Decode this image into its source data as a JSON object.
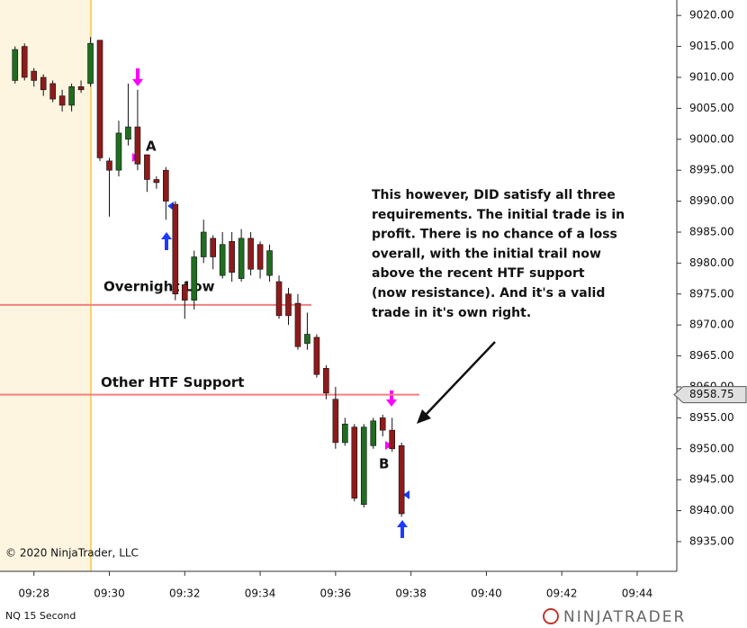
{
  "chart_data": {
    "type": "candlestick",
    "instrument": "NQ 15 Second",
    "copyright": "© 2020 NinjaTrader, LLC",
    "logo": "NINJATRADER",
    "up_color": "#1f6e1f",
    "down_color": "#8e1b1b",
    "wick_color": "#111111",
    "x": [
      567.5,
      567.75,
      568,
      568.25,
      568.5,
      568.75,
      569,
      569.25,
      569.5,
      569.75,
      570,
      570.25,
      570.5,
      570.75,
      571,
      571.25,
      571.5,
      571.75,
      572,
      572.25,
      572.5,
      572.75,
      573,
      573.25,
      573.5,
      573.75,
      574,
      574.25,
      574.5,
      574.75,
      575,
      575.25,
      575.5,
      575.75,
      576,
      576.25,
      576.5,
      576.75,
      577,
      577.25,
      577.5,
      577.75
    ],
    "open": [
      9009.5,
      9015,
      9011,
      9010,
      9009,
      9007,
      9005.5,
      9008.5,
      9009,
      9016,
      8996.5,
      8995,
      9000,
      9002,
      8997.5,
      8993.5,
      8995,
      8989.5,
      8976.5,
      8974,
      8981,
      8984,
      8978,
      8983.5,
      8977.5,
      8984,
      8983,
      8978,
      8977,
      8975,
      8973.5,
      8967,
      8968,
      8963,
      8958,
      8951,
      8953.5,
      8941,
      8950.5,
      8955,
      8953,
      8950.5
    ],
    "high": [
      9015,
      9015.5,
      9011.5,
      9010.5,
      9009.5,
      9008,
      9009,
      9009.5,
      9016.5,
      9016,
      8997,
      9003,
      9009,
      9008,
      8997.5,
      8994,
      8995.5,
      8990,
      8977,
      8982,
      8987,
      8984.5,
      8985,
      8985,
      8985.5,
      8985,
      8983.5,
      8983,
      8978,
      8976,
      8975,
      8972,
      8968.5,
      8963.5,
      8960,
      8955,
      8954,
      8954,
      8955,
      8955.5,
      8955,
      8951
    ],
    "low": [
      9009,
      9009.5,
      9008.5,
      9007,
      9006,
      9004.5,
      9004.5,
      9007.5,
      9008.5,
      8996.5,
      8987.5,
      8994,
      8999,
      8995,
      8991.5,
      8992,
      8987,
      8974,
      8971,
      8972.5,
      8980,
      8979,
      8977.5,
      8977,
      8977,
      8978,
      8977.5,
      8977,
      8971,
      8970,
      8966,
      8966,
      8961.5,
      8958,
      8950,
      8950.5,
      8941.5,
      8940.5,
      8950,
      8952,
      8949.5,
      8939
    ],
    "close": [
      9014.5,
      9010,
      9009.5,
      9008,
      9006.5,
      9005.5,
      9008.5,
      9008,
      9015.5,
      8997,
      8995,
      9001,
      9002,
      8996,
      8993.5,
      8993,
      8990,
      8975,
      8974,
      8981,
      8985,
      8981,
      8983,
      8978.5,
      8984,
      8979,
      8979,
      8982,
      8971.5,
      8971.5,
      8966.5,
      8968.5,
      8962,
      8959,
      8951,
      8954,
      8942,
      8953.5,
      8954.5,
      8953,
      8950,
      8939.5
    ],
    "xlim": [
      567.1,
      585.05
    ],
    "ylim": [
      8930.2,
      9022.5
    ],
    "xticks": [
      {
        "value": 568,
        "label": "09:28"
      },
      {
        "value": 570,
        "label": "09:30"
      },
      {
        "value": 572,
        "label": "09:32"
      },
      {
        "value": 574,
        "label": "09:34"
      },
      {
        "value": 576,
        "label": "09:36"
      },
      {
        "value": 578,
        "label": "09:38"
      },
      {
        "value": 580,
        "label": "09:40"
      },
      {
        "value": 582,
        "label": "09:42"
      },
      {
        "value": 584,
        "label": "09:44"
      }
    ],
    "yticks": [
      {
        "value": 8935,
        "label": "8935.00"
      },
      {
        "value": 8940,
        "label": "8940.00"
      },
      {
        "value": 8945,
        "label": "8945.00"
      },
      {
        "value": 8950,
        "label": "8950.00"
      },
      {
        "value": 8955,
        "label": "8955.00"
      },
      {
        "value": 8960,
        "label": "8960.00"
      },
      {
        "value": 8965,
        "label": "8965.00"
      },
      {
        "value": 8970,
        "label": "8970.00"
      },
      {
        "value": 8975,
        "label": "8975.00"
      },
      {
        "value": 8980,
        "label": "8980.00"
      },
      {
        "value": 8985,
        "label": "8985.00"
      },
      {
        "value": 8990,
        "label": "8990.00"
      },
      {
        "value": 8995,
        "label": "8995.00"
      },
      {
        "value": 9000,
        "label": "9000.00"
      },
      {
        "value": 9005,
        "label": "9005.00"
      },
      {
        "value": 9010,
        "label": "9010.00"
      },
      {
        "value": 9015,
        "label": "9015.00"
      },
      {
        "value": 9020,
        "label": "9020.00"
      }
    ],
    "levels": [
      {
        "name": "Overnight Low",
        "value": 8973.25,
        "color": "#f08080"
      },
      {
        "name": "Other HTF Support",
        "value": 8958.75,
        "color": "#f08080"
      }
    ],
    "price_marker": 8958.75,
    "trade_labels": [
      "A",
      "B"
    ],
    "annotation": [
      "This however, DID satisfy all three",
      "requirements. The initial trade is in",
      "profit. There is no chance of a loss",
      "overall, with the initial trail now",
      "above the recent HTF support",
      "(now resistance). And it's a valid",
      "trade in it's own right."
    ]
  }
}
